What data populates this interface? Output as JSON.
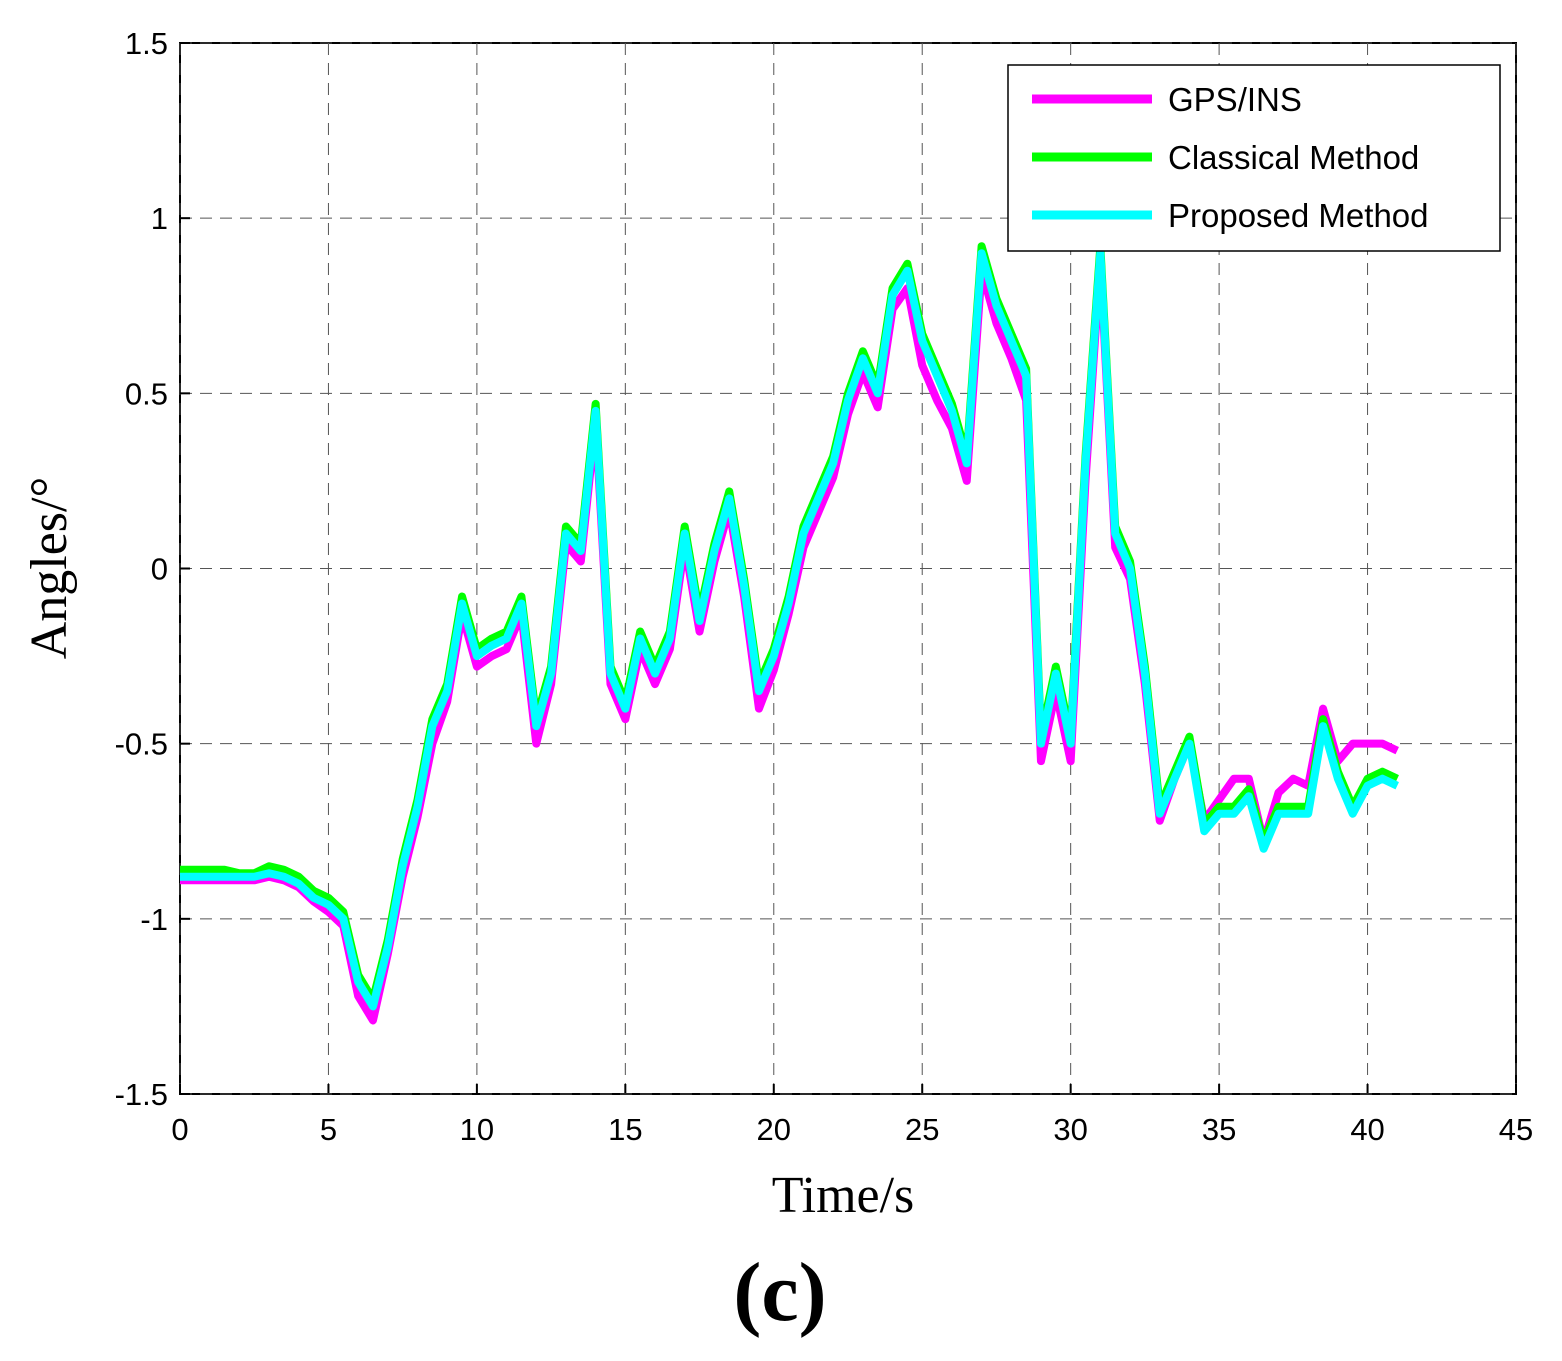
{
  "chart_data": {
    "type": "line",
    "caption": "(c)",
    "xlabel": "Time/s",
    "ylabel": "Angles/°",
    "xlim": [
      0,
      45
    ],
    "ylim": [
      -1.5,
      1.5
    ],
    "xticks": [
      0,
      5,
      10,
      15,
      20,
      25,
      30,
      35,
      40,
      45
    ],
    "yticks": [
      -1.5,
      -1,
      -0.5,
      0,
      0.5,
      1,
      1.5
    ],
    "grid": true,
    "legend": "upper right",
    "x": [
      0,
      0.5,
      1,
      1.5,
      2,
      2.5,
      3,
      3.5,
      4,
      4.5,
      5,
      5.5,
      6,
      6.5,
      7,
      7.5,
      8,
      8.5,
      9,
      9.5,
      10,
      10.5,
      11,
      11.5,
      12,
      12.5,
      13,
      13.5,
      14,
      14.5,
      15,
      15.5,
      16,
      16.5,
      17,
      17.5,
      18,
      18.5,
      19,
      19.5,
      20,
      20.5,
      21,
      21.5,
      22,
      22.5,
      23,
      23.5,
      24,
      24.5,
      25,
      25.5,
      26,
      26.5,
      27,
      27.5,
      28,
      28.5,
      29,
      29.5,
      30,
      30.5,
      31,
      31.5,
      32,
      32.5,
      33,
      33.5,
      34,
      34.5,
      35,
      35.5,
      36,
      36.5,
      37,
      37.5,
      38,
      38.5,
      39,
      39.5,
      40,
      40.5,
      41
    ],
    "series": [
      {
        "name": "GPS/INS",
        "color": "#ff00ff",
        "values": [
          -0.89,
          -0.89,
          -0.89,
          -0.89,
          -0.89,
          -0.89,
          -0.88,
          -0.89,
          -0.91,
          -0.95,
          -0.98,
          -1.02,
          -1.22,
          -1.29,
          -1.1,
          -0.88,
          -0.71,
          -0.5,
          -0.38,
          -0.13,
          -0.28,
          -0.25,
          -0.23,
          -0.13,
          -0.5,
          -0.33,
          0.07,
          0.02,
          0.42,
          -0.33,
          -0.43,
          -0.23,
          -0.33,
          -0.23,
          0.07,
          -0.18,
          0.02,
          0.17,
          -0.08,
          -0.4,
          -0.29,
          -0.13,
          0.06,
          0.16,
          0.26,
          0.44,
          0.56,
          0.46,
          0.74,
          0.8,
          0.58,
          0.48,
          0.4,
          0.25,
          0.85,
          0.7,
          0.6,
          0.48,
          -0.55,
          -0.35,
          -0.55,
          0.25,
          0.88,
          0.06,
          -0.03,
          -0.33,
          -0.72,
          -0.6,
          -0.5,
          -0.72,
          -0.66,
          -0.6,
          -0.6,
          -0.78,
          -0.64,
          -0.6,
          -0.62,
          -0.4,
          -0.55,
          -0.5,
          -0.5,
          -0.5,
          -0.52
        ]
      },
      {
        "name": "Classical Method",
        "color": "#00ff00",
        "values": [
          -0.86,
          -0.86,
          -0.86,
          -0.86,
          -0.87,
          -0.87,
          -0.85,
          -0.86,
          -0.88,
          -0.92,
          -0.94,
          -0.98,
          -1.16,
          -1.23,
          -1.06,
          -0.83,
          -0.66,
          -0.43,
          -0.33,
          -0.08,
          -0.23,
          -0.2,
          -0.18,
          -0.08,
          -0.43,
          -0.28,
          0.12,
          0.07,
          0.47,
          -0.28,
          -0.38,
          -0.18,
          -0.28,
          -0.18,
          0.12,
          -0.13,
          0.07,
          0.22,
          -0.03,
          -0.33,
          -0.23,
          -0.08,
          0.12,
          0.22,
          0.32,
          0.5,
          0.62,
          0.52,
          0.8,
          0.87,
          0.67,
          0.57,
          0.47,
          0.32,
          0.92,
          0.77,
          0.67,
          0.57,
          -0.48,
          -0.28,
          -0.48,
          0.32,
          0.92,
          0.12,
          0.02,
          -0.28,
          -0.68,
          -0.58,
          -0.48,
          -0.73,
          -0.68,
          -0.68,
          -0.63,
          -0.78,
          -0.68,
          -0.68,
          -0.68,
          -0.43,
          -0.58,
          -0.68,
          -0.6,
          -0.58,
          -0.6
        ]
      },
      {
        "name": "Proposed Method",
        "color": "#00ffff",
        "values": [
          -0.88,
          -0.88,
          -0.88,
          -0.88,
          -0.88,
          -0.88,
          -0.87,
          -0.88,
          -0.9,
          -0.94,
          -0.96,
          -1.0,
          -1.18,
          -1.25,
          -1.08,
          -0.85,
          -0.68,
          -0.45,
          -0.35,
          -0.1,
          -0.25,
          -0.22,
          -0.2,
          -0.1,
          -0.45,
          -0.3,
          0.1,
          0.05,
          0.45,
          -0.3,
          -0.4,
          -0.2,
          -0.3,
          -0.2,
          0.1,
          -0.15,
          0.05,
          0.2,
          -0.05,
          -0.35,
          -0.25,
          -0.1,
          0.1,
          0.2,
          0.3,
          0.48,
          0.6,
          0.5,
          0.78,
          0.85,
          0.65,
          0.55,
          0.45,
          0.3,
          0.9,
          0.75,
          0.65,
          0.55,
          -0.5,
          -0.3,
          -0.5,
          0.3,
          0.9,
          0.1,
          0.0,
          -0.3,
          -0.7,
          -0.6,
          -0.5,
          -0.75,
          -0.7,
          -0.7,
          -0.65,
          -0.8,
          -0.7,
          -0.7,
          -0.7,
          -0.45,
          -0.6,
          -0.7,
          -0.62,
          -0.6,
          -0.62
        ]
      }
    ]
  }
}
